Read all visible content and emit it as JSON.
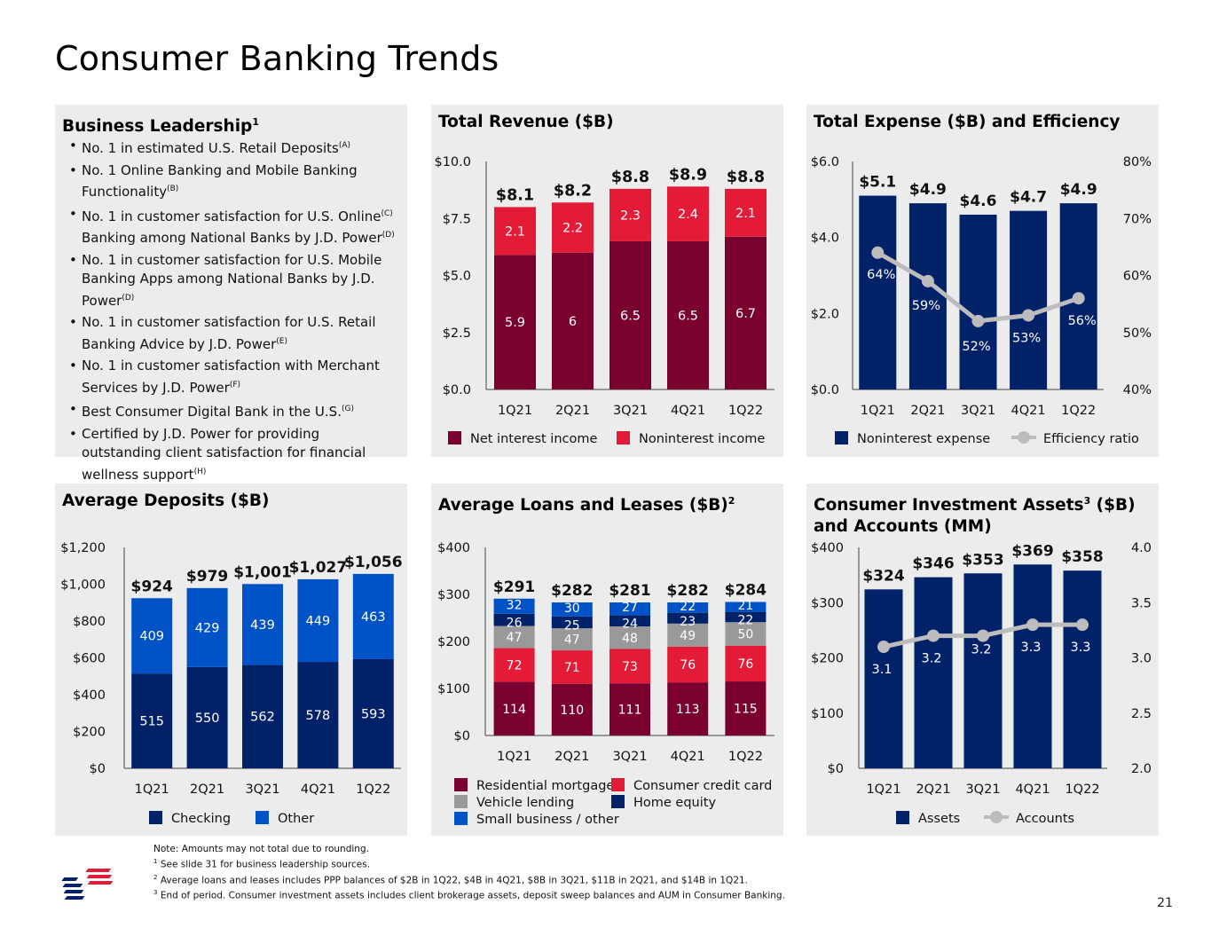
{
  "page": {
    "title": "Consumer Banking Trends",
    "page_number": "21"
  },
  "colors": {
    "maroon": "#7a0030",
    "red": "#e31b37",
    "navy": "#012169",
    "blue": "#0a4fd1",
    "gray": "#999999",
    "mid_blue": "#0053c7",
    "line_gray": "#bcbcbc"
  },
  "leadership": {
    "title": "Business Leadership",
    "title_sup": "1",
    "items": [
      {
        "text": "No. 1 in estimated U.S. Retail Deposits",
        "sup": "(A)"
      },
      {
        "text": "No. 1 Online Banking and Mobile Banking Functionality",
        "sup": "(B)"
      },
      {
        "text": "No. 1 in customer satisfaction for U.S. Online",
        "sup": "(C)",
        "text2": " Banking among National Banks by J.D. Power",
        "sup2": "(D)"
      },
      {
        "text": "No. 1 in customer satisfaction for U.S. Mobile Banking Apps among National Banks by J.D. Power",
        "sup": "(D)"
      },
      {
        "text": "No. 1 in customer satisfaction for U.S. Retail Banking Advice by J.D. Power",
        "sup": "(E)"
      },
      {
        "text": "No. 1 in customer satisfaction with Merchant Services by J.D. Power",
        "sup": "(F)"
      },
      {
        "text": "Best Consumer Digital Bank in the U.S.",
        "sup": "(G)"
      },
      {
        "text": "Certified by J.D. Power for providing outstanding client satisfaction for financial wellness support",
        "sup": "(H)"
      }
    ]
  },
  "chart_data": [
    {
      "id": "revenue",
      "type": "bar",
      "title": "Total Revenue ($B)",
      "categories": [
        "1Q21",
        "2Q21",
        "3Q21",
        "4Q21",
        "1Q22"
      ],
      "series": [
        {
          "name": "Net interest income",
          "values": [
            5.9,
            6.0,
            6.5,
            6.5,
            6.7
          ],
          "color": "#7a0030"
        },
        {
          "name": "Noninterest income",
          "values": [
            2.1,
            2.2,
            2.3,
            2.4,
            2.1
          ],
          "color": "#e31b37"
        }
      ],
      "totals": [
        "$8.1",
        "$8.2",
        "$8.8",
        "$8.9",
        "$8.8"
      ],
      "yticks": [
        "$0.0",
        "$2.5",
        "$5.0",
        "$7.5",
        "$10.0"
      ],
      "ylim": [
        0,
        10
      ]
    },
    {
      "id": "expense",
      "type": "bar",
      "title": "Total Expense ($B) and Efficiency",
      "categories": [
        "1Q21",
        "2Q21",
        "3Q21",
        "4Q21",
        "1Q22"
      ],
      "series": [
        {
          "name": "Noninterest expense",
          "values": [
            5.1,
            4.9,
            4.6,
            4.7,
            4.9
          ],
          "color": "#012169",
          "labels": [
            "$5.1",
            "$4.9",
            "$4.6",
            "$4.7",
            "$4.9"
          ]
        },
        {
          "name": "Efficiency ratio",
          "type": "line",
          "values": [
            64,
            59,
            52,
            53,
            56
          ],
          "labels": [
            "64%",
            "59%",
            "52%",
            "53%",
            "56%"
          ],
          "color": "#bcbcbc"
        }
      ],
      "yticks": [
        "$0.0",
        "$2.0",
        "$4.0",
        "$6.0"
      ],
      "ylim": [
        0,
        6
      ],
      "y2ticks": [
        "40%",
        "50%",
        "60%",
        "70%",
        "80%"
      ],
      "y2lim": [
        40,
        80
      ]
    },
    {
      "id": "deposits",
      "type": "bar",
      "title": "Average Deposits ($B)",
      "categories": [
        "1Q21",
        "2Q21",
        "3Q21",
        "4Q21",
        "1Q22"
      ],
      "series": [
        {
          "name": "Checking",
          "values": [
            515,
            550,
            562,
            578,
            593
          ],
          "color": "#012169"
        },
        {
          "name": "Other",
          "values": [
            409,
            429,
            439,
            449,
            463
          ],
          "color": "#0053c7"
        }
      ],
      "totals": [
        "$924",
        "$979",
        "$1,001",
        "$1,027",
        "$1,056"
      ],
      "yticks": [
        "$0",
        "$200",
        "$400",
        "$600",
        "$800",
        "$1,000",
        "$1,200"
      ],
      "ylim": [
        0,
        1200
      ]
    },
    {
      "id": "loans",
      "type": "bar",
      "title": "Average Loans and Leases ($B)",
      "title_sup": "2",
      "categories": [
        "1Q21",
        "2Q21",
        "3Q21",
        "4Q21",
        "1Q22"
      ],
      "series": [
        {
          "name": "Residential mortgage",
          "values": [
            114,
            110,
            111,
            113,
            115
          ],
          "color": "#7a0030"
        },
        {
          "name": "Consumer credit card",
          "values": [
            72,
            71,
            73,
            76,
            76
          ],
          "color": "#e31b37"
        },
        {
          "name": "Vehicle lending",
          "values": [
            47,
            47,
            48,
            49,
            50
          ],
          "color": "#999999"
        },
        {
          "name": "Home equity",
          "values": [
            26,
            25,
            24,
            23,
            22
          ],
          "color": "#012169"
        },
        {
          "name": "Small business / other",
          "values": [
            32,
            30,
            27,
            22,
            21
          ],
          "color": "#0053c7"
        }
      ],
      "totals": [
        "$291",
        "$282",
        "$281",
        "$282",
        "$284"
      ],
      "yticks": [
        "$0",
        "$100",
        "$200",
        "$300",
        "$400"
      ],
      "ylim": [
        0,
        400
      ]
    },
    {
      "id": "investment",
      "type": "bar",
      "title": "Consumer Investment Assets",
      "title_sup": "3",
      "title_rest": " ($B) and Accounts (MM)",
      "categories": [
        "1Q21",
        "2Q21",
        "3Q21",
        "4Q21",
        "1Q22"
      ],
      "series": [
        {
          "name": "Assets",
          "values": [
            324,
            346,
            353,
            369,
            358
          ],
          "color": "#012169",
          "labels": [
            "$324",
            "$346",
            "$353",
            "$369",
            "$358"
          ]
        },
        {
          "name": "Accounts",
          "type": "line",
          "values": [
            3.1,
            3.2,
            3.2,
            3.3,
            3.3
          ],
          "labels": [
            "3.1",
            "3.2",
            "3.2",
            "3.3",
            "3.3"
          ],
          "color": "#bcbcbc"
        }
      ],
      "yticks": [
        "$0",
        "$100",
        "$200",
        "$300",
        "$400"
      ],
      "ylim": [
        0,
        400
      ],
      "y2ticks": [
        "2.0",
        "2.5",
        "3.0",
        "3.5",
        "4.0"
      ],
      "y2lim": [
        2.0,
        4.0
      ]
    }
  ],
  "notes": {
    "line0": "Note: Amounts may not total due to rounding.",
    "line1": "See slide 31 for business leadership sources.",
    "line2": "Average loans and leases includes PPP balances of $2B in 1Q22, $4B in 4Q21, $8B in 3Q21, $11B in 2Q21, and $14B in 1Q21.",
    "line3": "End of period. Consumer investment assets includes client brokerage assets, deposit sweep balances and AUM in Consumer Banking."
  }
}
